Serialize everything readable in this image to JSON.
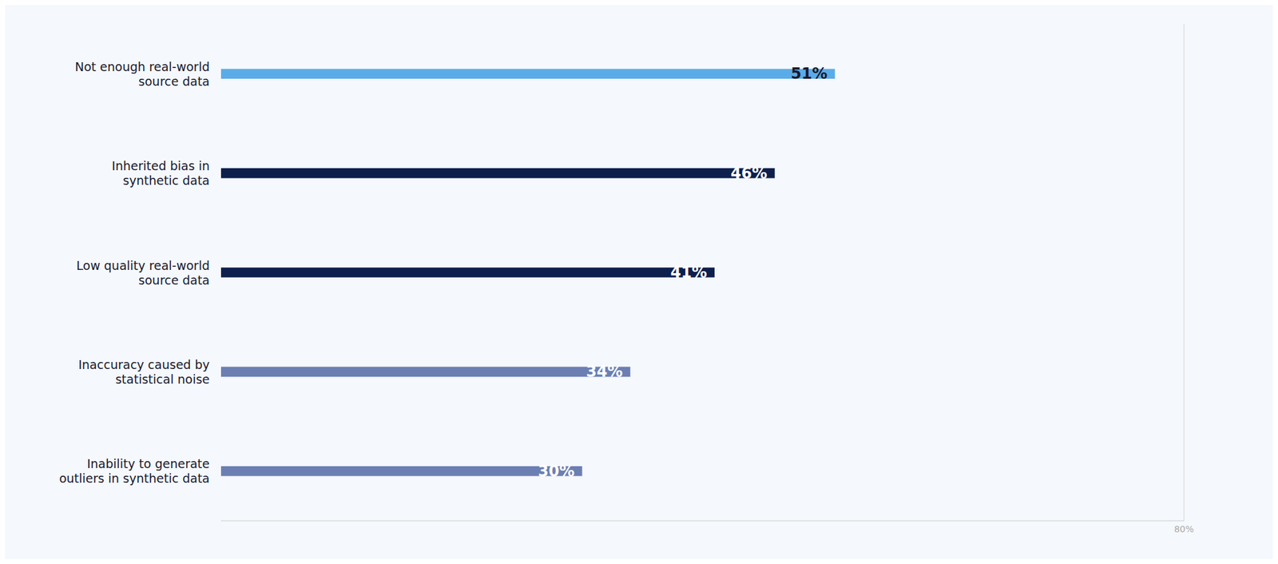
{
  "chart_data": {
    "type": "bar",
    "orientation": "horizontal",
    "categories": [
      "Inability to generate\noutliers in synthetic data",
      "Inaccuracy caused by\nstatistical noise",
      "Low quality real-world\nsource data",
      "Inherited bias in\nsynthetic data",
      "Not enough real-world\nsource data"
    ],
    "values": [
      30,
      34,
      41,
      46,
      51
    ],
    "value_labels": [
      "30%",
      "34%",
      "41%",
      "46%",
      "51%"
    ],
    "data_labels": true,
    "colors": [
      "#6b7fb3",
      "#6b7fb3",
      "#0d1f4c",
      "#0d1f4c",
      "#5aace8"
    ],
    "xlim": [
      0,
      80
    ],
    "xticks": [
      {
        "value": 80,
        "label": "80%"
      }
    ],
    "grid": false
  }
}
